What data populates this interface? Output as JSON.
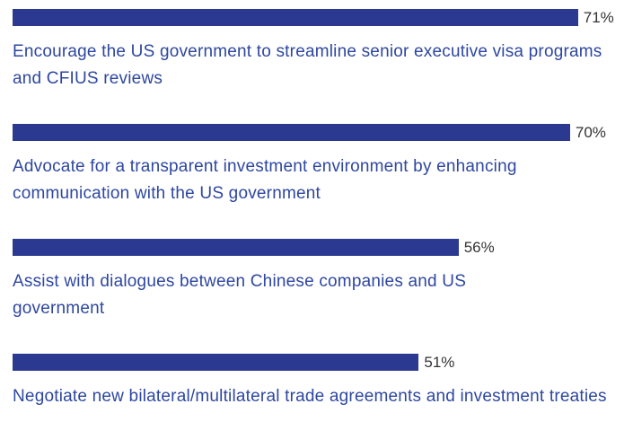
{
  "chart_data": {
    "type": "bar",
    "orientation": "horizontal",
    "color": "#2b3990",
    "categories": [
      "Encourage the US government to streamline senior executive visa programs and CFIUS reviews",
      "Advocate for a transparent investment environment by enhancing communication with the US government",
      "Assist with dialogues between Chinese companies and US government",
      "Negotiate new bilateral/multilateral trade agreements and investment treaties"
    ],
    "values": [
      71,
      70,
      56,
      51
    ],
    "value_labels": [
      "71%",
      "70%",
      "56%",
      "51%"
    ]
  }
}
